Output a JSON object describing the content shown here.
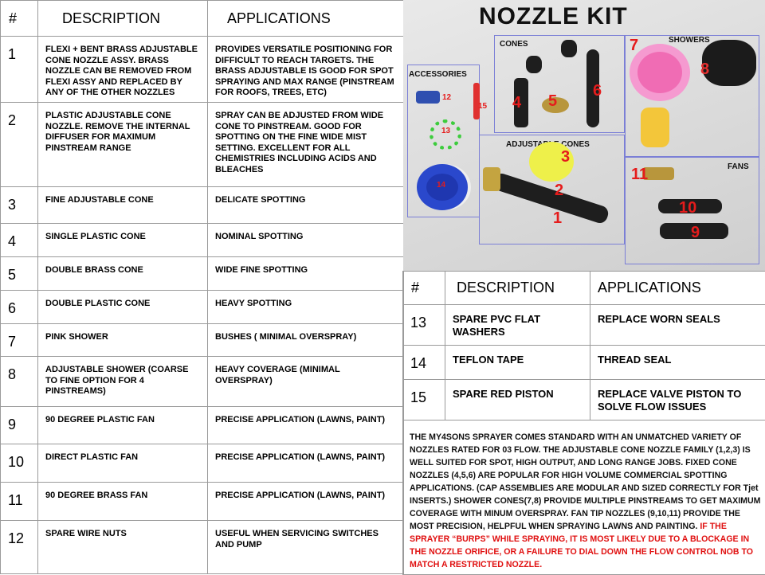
{
  "left_table": {
    "headers": [
      "#",
      "DESCRIPTION",
      "APPLICATIONS"
    ],
    "rows": [
      {
        "num": "1",
        "description": "FLEXI + BENT BRASS ADJUSTABLE CONE NOZZLE ASSY. BRASS NOZZLE CAN BE REMOVED FROM FLEXI ASSY AND REPLACED BY ANY OF THE OTHER NOZZLES",
        "application": "PROVIDES VERSATILE POSITIONING FOR DIFFICULT TO REACH TARGETS. THE BRASS ADJUSTABLE IS GOOD FOR SPOT SPRAYING AND  MAX RANGE (PINSTREAM FOR ROOFS, TREES, ETC)"
      },
      {
        "num": "2",
        "description": "PLASTIC ADJUSTABLE CONE NOZZLE. REMOVE THE INTERNAL DIFFUSER FOR MAXIMUM PINSTREAM RANGE",
        "application": "SPRAY CAN BE ADJUSTED FROM WIDE CONE TO PINSTREAM. GOOD FOR SPOTTING ON THE FINE WIDE MIST SETTING. EXCELLENT FOR ALL CHEMISTRIES INCLUDING ACIDS AND BLEACHES"
      },
      {
        "num": "3",
        "description": "FINE ADJUSTABLE CONE",
        "application": "DELICATE SPOTTING"
      },
      {
        "num": "4",
        "description": "SINGLE PLASTIC CONE",
        "application": "NOMINAL SPOTTING"
      },
      {
        "num": "5",
        "description": "DOUBLE BRASS CONE",
        "application": "WIDE FINE SPOTTING"
      },
      {
        "num": "6",
        "description": "DOUBLE PLASTIC CONE",
        "application": "HEAVY SPOTTING"
      },
      {
        "num": "7",
        "description": "PINK SHOWER",
        "application": "BUSHES ( MINIMAL OVERSPRAY)"
      },
      {
        "num": "8",
        "description": "ADJUSTABLE SHOWER (COARSE TO FINE OPTION FOR 4 PINSTREAMS)",
        "application": "HEAVY COVERAGE (MINIMAL OVERSPRAY)"
      },
      {
        "num": "9",
        "description": "90 DEGREE PLASTIC FAN",
        "application": "PRECISE APPLICATION (LAWNS, PAINT)"
      },
      {
        "num": "10",
        "description": "DIRECT PLASTIC FAN",
        "application": "PRECISE APPLICATION (LAWNS, PAINT)"
      },
      {
        "num": "11",
        "description": "90 DEGREE BRASS FAN",
        "application": "PRECISE APPLICATION (LAWNS, PAINT)"
      },
      {
        "num": "12",
        "description": "SPARE WIRE NUTS",
        "application": "USEFUL WHEN SERVICING SWITCHES AND PUMP"
      }
    ]
  },
  "photo": {
    "title": "NOZZLE KIT",
    "groups": [
      "CONES",
      "SHOWERS",
      "ACCESSORIES",
      "ADJUSTABLE CONES",
      "FANS"
    ],
    "numbers": [
      "1",
      "2",
      "3",
      "4",
      "5",
      "6",
      "7",
      "8",
      "9",
      "10",
      "11",
      "12",
      "13",
      "14",
      "15"
    ]
  },
  "right_table": {
    "headers": [
      "#",
      "DESCRIPTION",
      "APPLICATIONS"
    ],
    "rows": [
      {
        "num": "13",
        "description": "SPARE PVC FLAT WASHERS",
        "application": "REPLACE WORN SEALS"
      },
      {
        "num": "14",
        "description": "TEFLON TAPE",
        "application": "THREAD SEAL"
      },
      {
        "num": "15",
        "description": "SPARE RED PISTON",
        "application": "REPLACE VALVE PISTON TO SOLVE FLOW ISSUES"
      }
    ]
  },
  "paragraph": {
    "text": "THE MY4SONS SPRAYER COMES STANDARD WITH AN UNMATCHED VARIETY OF NOZZLES RATED FOR 03 FLOW. THE ADJUSTABLE CONE NOZZLE FAMILY (1,2,3) IS WELL SUITED FOR SPOT, HIGH OUTPUT, AND LONG RANGE JOBS. FIXED CONE NOZZLES  (4,5,6) ARE POPULAR FOR HIGH VOLUME COMMERCIAL SPOTTING APPLICATIONS. (CAP ASSEMBLIES ARE MODULAR AND SIZED CORRECTLY FOR Tjet INSERTS.)   SHOWER CONES(7,8)  PROVIDE MULTIPLE PINSTREAMS TO GET MAXIMUM COVERAGE WITH MINUM OVERSPRAY. FAN TIP NOZZLES (9,10,11) PROVIDE THE MOST PRECISION, HELPFUL WHEN SPRAYING LAWNS AND PAINTING. ",
    "warning": "IF THE SPRAYER “BURPS” WHILE SPRAYING, IT IS MOST LIKELY DUE TO A BLOCKAGE IN THE NOZZLE ORIFICE, OR A FAILURE TO DIAL DOWN THE FLOW CONTROL NOB  TO MATCH A RESTRICTED NOZZLE."
  },
  "colors": {
    "warning": "#e01010",
    "label_red": "#e51c1c",
    "group_box": "#7b7fd6"
  }
}
